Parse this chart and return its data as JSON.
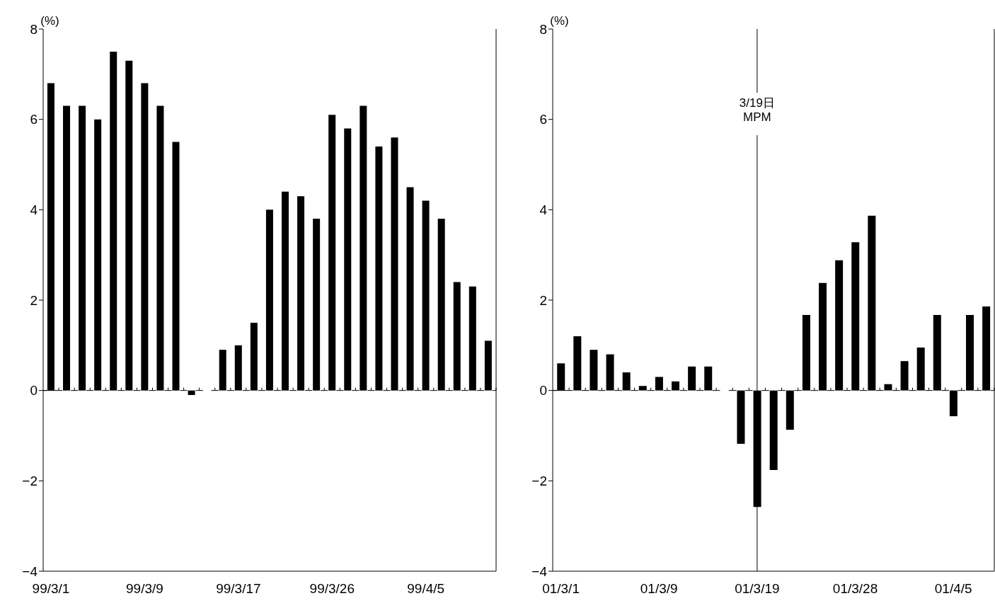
{
  "chart_data": [
    {
      "type": "bar",
      "ylabel": "(%)",
      "categories": [
        "99/3/1",
        null,
        null,
        null,
        null,
        null,
        "99/3/9",
        null,
        null,
        null,
        null,
        null,
        "99/3/17",
        null,
        null,
        null,
        null,
        null,
        "99/3/26",
        null,
        null,
        null,
        null,
        null,
        "99/4/5",
        null,
        null,
        null,
        null
      ],
      "values": [
        6.8,
        6.3,
        6.3,
        6.0,
        7.5,
        7.3,
        6.8,
        6.3,
        5.5,
        -0.1,
        null,
        0.9,
        1.0,
        1.5,
        4.0,
        4.4,
        4.3,
        3.8,
        6.1,
        5.8,
        6.3,
        5.4,
        5.6,
        4.5,
        4.2,
        3.8,
        2.4,
        2.3,
        1.1
      ],
      "color": "#000000",
      "ylim": [
        -4,
        8
      ],
      "yticks": [
        -4,
        -2,
        0,
        2,
        4,
        6,
        8
      ],
      "grid": false,
      "legend": false
    },
    {
      "type": "bar",
      "ylabel": "(%)",
      "categories": [
        "01/3/1",
        null,
        null,
        null,
        null,
        null,
        "01/3/9",
        null,
        null,
        null,
        null,
        null,
        "01/3/19",
        null,
        null,
        null,
        null,
        null,
        "01/3/28",
        null,
        null,
        null,
        null,
        null,
        "01/4/5",
        null,
        null
      ],
      "values": [
        0.6,
        1.2,
        0.9,
        0.8,
        0.4,
        0.1,
        0.3,
        0.2,
        0.53,
        0.53,
        null,
        -1.18,
        -2.58,
        -1.76,
        -0.87,
        1.67,
        2.38,
        2.88,
        3.28,
        3.87,
        0.14,
        0.65,
        0.95,
        1.67,
        -0.57,
        1.67,
        1.86
      ],
      "color": "#000000",
      "ylim": [
        -4,
        8
      ],
      "yticks": [
        -4,
        -2,
        0,
        2,
        4,
        6,
        8
      ],
      "grid": false,
      "legend": false,
      "ref_lines": [
        {
          "axis": "x",
          "value": "01/3/19",
          "label": "3/19日\nMPM",
          "color": "#000000"
        }
      ]
    }
  ]
}
